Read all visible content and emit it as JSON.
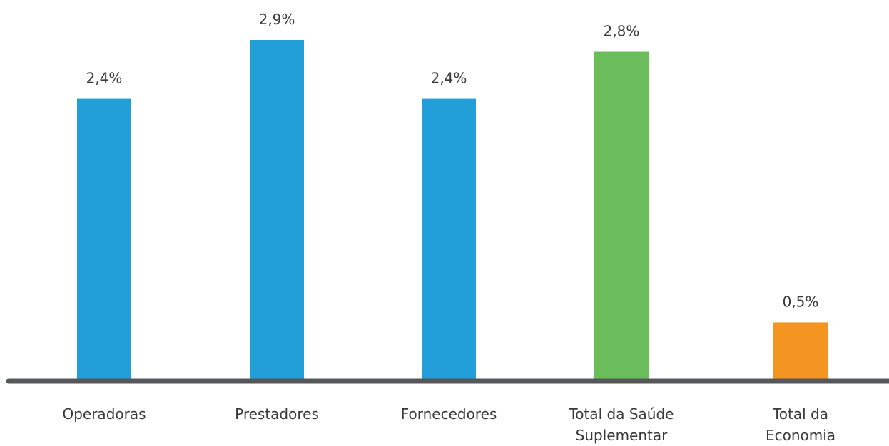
{
  "chart_data": {
    "type": "bar",
    "categories": [
      [
        "Operadoras"
      ],
      [
        "Prestadores"
      ],
      [
        "Fornecedores"
      ],
      [
        "Total da Saúde",
        "Suplementar"
      ],
      [
        "Total da",
        "Economia"
      ]
    ],
    "values": [
      2.4,
      2.9,
      2.4,
      2.8,
      0.5
    ],
    "value_labels": [
      "2,4%",
      "2,9%",
      "2,4%",
      "2,8%",
      "0,5%"
    ],
    "colors": [
      "#229ed9",
      "#229ed9",
      "#229ed9",
      "#6abd5a",
      "#f39520"
    ],
    "axis_color": "#555759",
    "ylim": [
      0,
      3.0
    ],
    "title": "",
    "xlabel": "",
    "ylabel": "",
    "grid": false,
    "legend": "none"
  }
}
